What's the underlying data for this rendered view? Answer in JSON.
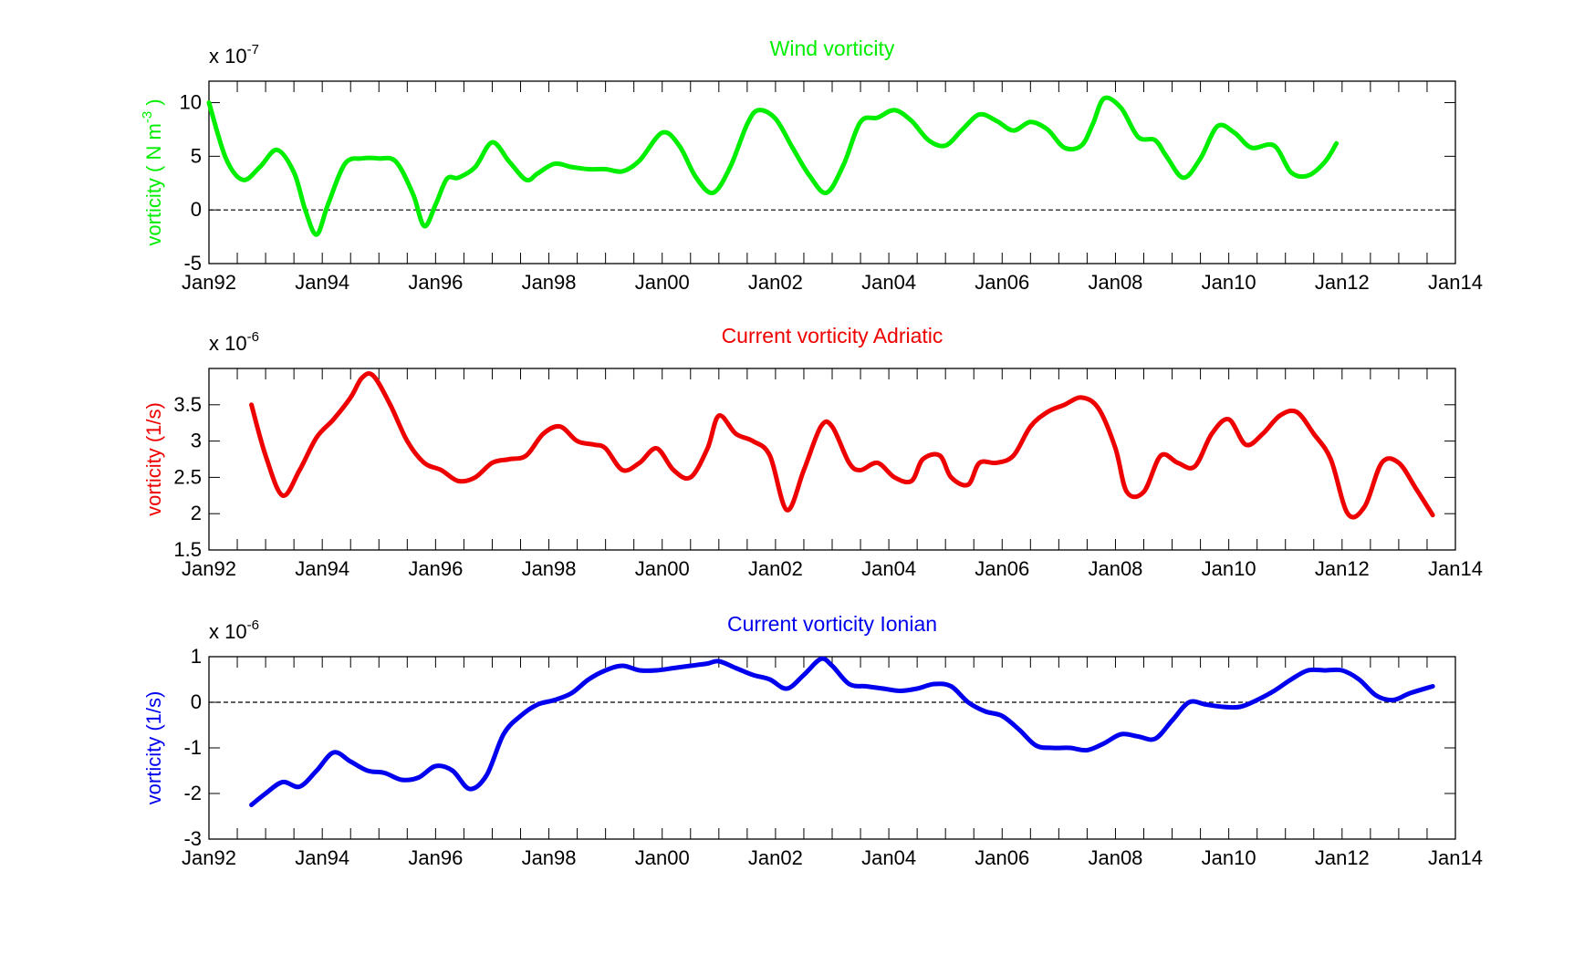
{
  "chart_data": [
    {
      "type": "line",
      "title": "Wind vorticity",
      "color": "#00ee00",
      "ylabel": "vorticity ( N m",
      "ylabel_sup": "-3",
      "ylabel_end": " )",
      "scale_label": "x 10",
      "scale_exp": "-7",
      "xlim": [
        1992,
        2014
      ],
      "ylim": [
        -5,
        12
      ],
      "yticks": [
        -5,
        0,
        5,
        10
      ],
      "ytick_labels": [
        "-5",
        "0",
        "5",
        "10"
      ],
      "xticks": [
        1992,
        1994,
        1996,
        1998,
        2000,
        2002,
        2004,
        2006,
        2008,
        2010,
        2012,
        2014
      ],
      "xtick_labels": [
        "Jan92",
        "Jan94",
        "Jan96",
        "Jan98",
        "Jan00",
        "Jan02",
        "Jan04",
        "Jan06",
        "Jan08",
        "Jan10",
        "Jan12",
        "Jan14"
      ],
      "zero_line": true,
      "series": [
        {
          "name": "Wind vorticity",
          "x": [
            1992.0,
            1992.3,
            1992.6,
            1992.9,
            1993.2,
            1993.5,
            1993.7,
            1993.9,
            1994.1,
            1994.4,
            1994.7,
            1995.0,
            1995.3,
            1995.6,
            1995.8,
            1996.0,
            1996.2,
            1996.4,
            1996.7,
            1997.0,
            1997.3,
            1997.6,
            1997.8,
            1998.1,
            1998.4,
            1998.7,
            1999.0,
            1999.3,
            1999.6,
            2000.0,
            2000.3,
            2000.6,
            2000.9,
            2001.2,
            2001.5,
            2001.7,
            2002.0,
            2002.3,
            2002.6,
            2002.9,
            2003.2,
            2003.5,
            2003.8,
            2004.1,
            2004.4,
            2004.7,
            2005.0,
            2005.3,
            2005.6,
            2005.9,
            2006.2,
            2006.5,
            2006.8,
            2007.1,
            2007.4,
            2007.6,
            2007.8,
            2008.1,
            2008.4,
            2008.7,
            2008.9,
            2009.2,
            2009.5,
            2009.8,
            2010.1,
            2010.4,
            2010.8,
            2011.1,
            2011.4,
            2011.7,
            2011.9
          ],
          "values": [
            10.0,
            4.8,
            2.8,
            4.0,
            5.6,
            3.5,
            0.0,
            -2.3,
            0.5,
            4.3,
            4.8,
            4.8,
            4.5,
            1.5,
            -1.5,
            0.5,
            2.9,
            3.0,
            4.0,
            6.3,
            4.5,
            2.8,
            3.4,
            4.3,
            4.0,
            3.8,
            3.8,
            3.6,
            4.6,
            7.2,
            6.0,
            3.0,
            1.6,
            4.0,
            8.0,
            9.3,
            8.5,
            5.8,
            3.2,
            1.6,
            4.2,
            8.2,
            8.6,
            9.3,
            8.3,
            6.5,
            6.0,
            7.5,
            8.9,
            8.3,
            7.4,
            8.2,
            7.5,
            5.8,
            6.0,
            8.0,
            10.4,
            9.5,
            6.8,
            6.5,
            5.0,
            3.0,
            4.8,
            7.8,
            7.2,
            5.8,
            6.0,
            3.5,
            3.2,
            4.5,
            6.2
          ]
        }
      ]
    },
    {
      "type": "line",
      "title": "Current vorticity Adriatic",
      "color": "#ee0000",
      "ylabel": "vorticity (1/s)",
      "scale_label": "x 10",
      "scale_exp": "-6",
      "xlim": [
        1992,
        2014
      ],
      "ylim": [
        1.5,
        4.0
      ],
      "yticks": [
        1.5,
        2,
        2.5,
        3,
        3.5
      ],
      "ytick_labels": [
        "1.5",
        "2",
        "2.5",
        "3",
        "3.5"
      ],
      "xticks": [
        1992,
        1994,
        1996,
        1998,
        2000,
        2002,
        2004,
        2006,
        2008,
        2010,
        2012,
        2014
      ],
      "xtick_labels": [
        "Jan92",
        "Jan94",
        "Jan96",
        "Jan98",
        "Jan00",
        "Jan02",
        "Jan04",
        "Jan06",
        "Jan08",
        "Jan10",
        "Jan12",
        "Jan14"
      ],
      "zero_line": false,
      "series": [
        {
          "name": "Current vorticity Adriatic",
          "x": [
            1992.75,
            1993.0,
            1993.3,
            1993.6,
            1993.9,
            1994.2,
            1994.5,
            1994.7,
            1994.9,
            1995.2,
            1995.5,
            1995.8,
            1996.1,
            1996.4,
            1996.7,
            1997.0,
            1997.3,
            1997.6,
            1997.9,
            1998.2,
            1998.5,
            1998.8,
            1999.0,
            1999.3,
            1999.6,
            1999.9,
            2000.2,
            2000.5,
            2000.8,
            2001.0,
            2001.3,
            2001.6,
            2001.9,
            2002.2,
            2002.5,
            2002.8,
            2003.0,
            2003.3,
            2003.5,
            2003.8,
            2004.1,
            2004.4,
            2004.6,
            2004.9,
            2005.1,
            2005.4,
            2005.6,
            2005.9,
            2006.2,
            2006.5,
            2006.8,
            2007.1,
            2007.4,
            2007.7,
            2008.0,
            2008.2,
            2008.5,
            2008.8,
            2009.1,
            2009.4,
            2009.7,
            2010.0,
            2010.3,
            2010.6,
            2010.9,
            2011.2,
            2011.5,
            2011.8,
            2012.1,
            2012.4,
            2012.7,
            2013.0,
            2013.3,
            2013.6
          ],
          "values": [
            3.5,
            2.8,
            2.25,
            2.6,
            3.05,
            3.3,
            3.6,
            3.87,
            3.9,
            3.5,
            3.0,
            2.7,
            2.6,
            2.45,
            2.5,
            2.7,
            2.75,
            2.8,
            3.1,
            3.2,
            3.0,
            2.95,
            2.9,
            2.6,
            2.7,
            2.9,
            2.6,
            2.5,
            2.9,
            3.35,
            3.1,
            3.0,
            2.8,
            2.05,
            2.6,
            3.2,
            3.2,
            2.7,
            2.6,
            2.7,
            2.5,
            2.45,
            2.75,
            2.8,
            2.5,
            2.4,
            2.7,
            2.7,
            2.8,
            3.2,
            3.4,
            3.5,
            3.6,
            3.45,
            2.9,
            2.3,
            2.3,
            2.8,
            2.7,
            2.65,
            3.1,
            3.3,
            2.95,
            3.1,
            3.35,
            3.4,
            3.1,
            2.75,
            2.0,
            2.1,
            2.7,
            2.7,
            2.35,
            1.98
          ]
        }
      ]
    },
    {
      "type": "line",
      "title": "Current vorticity Ionian",
      "color": "#0000ee",
      "ylabel": "vorticity (1/s)",
      "scale_label": "x 10",
      "scale_exp": "-6",
      "xlim": [
        1992,
        2014
      ],
      "ylim": [
        -3,
        1
      ],
      "yticks": [
        -3,
        -2,
        -1,
        0,
        1
      ],
      "ytick_labels": [
        "-3",
        "-2",
        "-1",
        "0",
        "1"
      ],
      "xticks": [
        1992,
        1994,
        1996,
        1998,
        2000,
        2002,
        2004,
        2006,
        2008,
        2010,
        2012,
        2014
      ],
      "xtick_labels": [
        "Jan92",
        "Jan94",
        "Jan96",
        "Jan98",
        "Jan00",
        "Jan02",
        "Jan04",
        "Jan06",
        "Jan08",
        "Jan10",
        "Jan12",
        "Jan14"
      ],
      "zero_line": true,
      "series": [
        {
          "name": "Current vorticity Ionian",
          "x": [
            1992.75,
            1993.0,
            1993.3,
            1993.6,
            1993.9,
            1994.2,
            1994.5,
            1994.8,
            1995.1,
            1995.4,
            1995.7,
            1996.0,
            1996.3,
            1996.6,
            1996.9,
            1997.2,
            1997.5,
            1997.8,
            1998.1,
            1998.4,
            1998.7,
            1999.0,
            1999.3,
            1999.6,
            1999.9,
            2000.2,
            2000.5,
            2000.8,
            2001.0,
            2001.3,
            2001.6,
            2001.9,
            2002.2,
            2002.5,
            2002.8,
            2003.0,
            2003.3,
            2003.6,
            2003.9,
            2004.2,
            2004.5,
            2004.8,
            2005.1,
            2005.4,
            2005.7,
            2006.0,
            2006.3,
            2006.6,
            2006.9,
            2007.2,
            2007.5,
            2007.8,
            2008.1,
            2008.4,
            2008.7,
            2009.0,
            2009.3,
            2009.6,
            2009.9,
            2010.2,
            2010.5,
            2010.8,
            2011.1,
            2011.4,
            2011.7,
            2012.0,
            2012.3,
            2012.6,
            2012.9,
            2013.2,
            2013.6
          ],
          "values": [
            -2.25,
            -2.0,
            -1.75,
            -1.85,
            -1.5,
            -1.1,
            -1.3,
            -1.5,
            -1.55,
            -1.7,
            -1.65,
            -1.4,
            -1.5,
            -1.9,
            -1.6,
            -0.7,
            -0.3,
            -0.05,
            0.05,
            0.2,
            0.5,
            0.7,
            0.8,
            0.7,
            0.7,
            0.75,
            0.8,
            0.85,
            0.9,
            0.75,
            0.6,
            0.5,
            0.3,
            0.6,
            0.95,
            0.8,
            0.4,
            0.35,
            0.3,
            0.25,
            0.3,
            0.4,
            0.35,
            0.0,
            -0.2,
            -0.3,
            -0.6,
            -0.95,
            -1.0,
            -1.0,
            -1.05,
            -0.9,
            -0.7,
            -0.75,
            -0.8,
            -0.4,
            0.0,
            -0.05,
            -0.1,
            -0.1,
            0.05,
            0.25,
            0.5,
            0.7,
            0.7,
            0.7,
            0.5,
            0.15,
            0.05,
            0.2,
            0.35
          ]
        }
      ]
    }
  ]
}
